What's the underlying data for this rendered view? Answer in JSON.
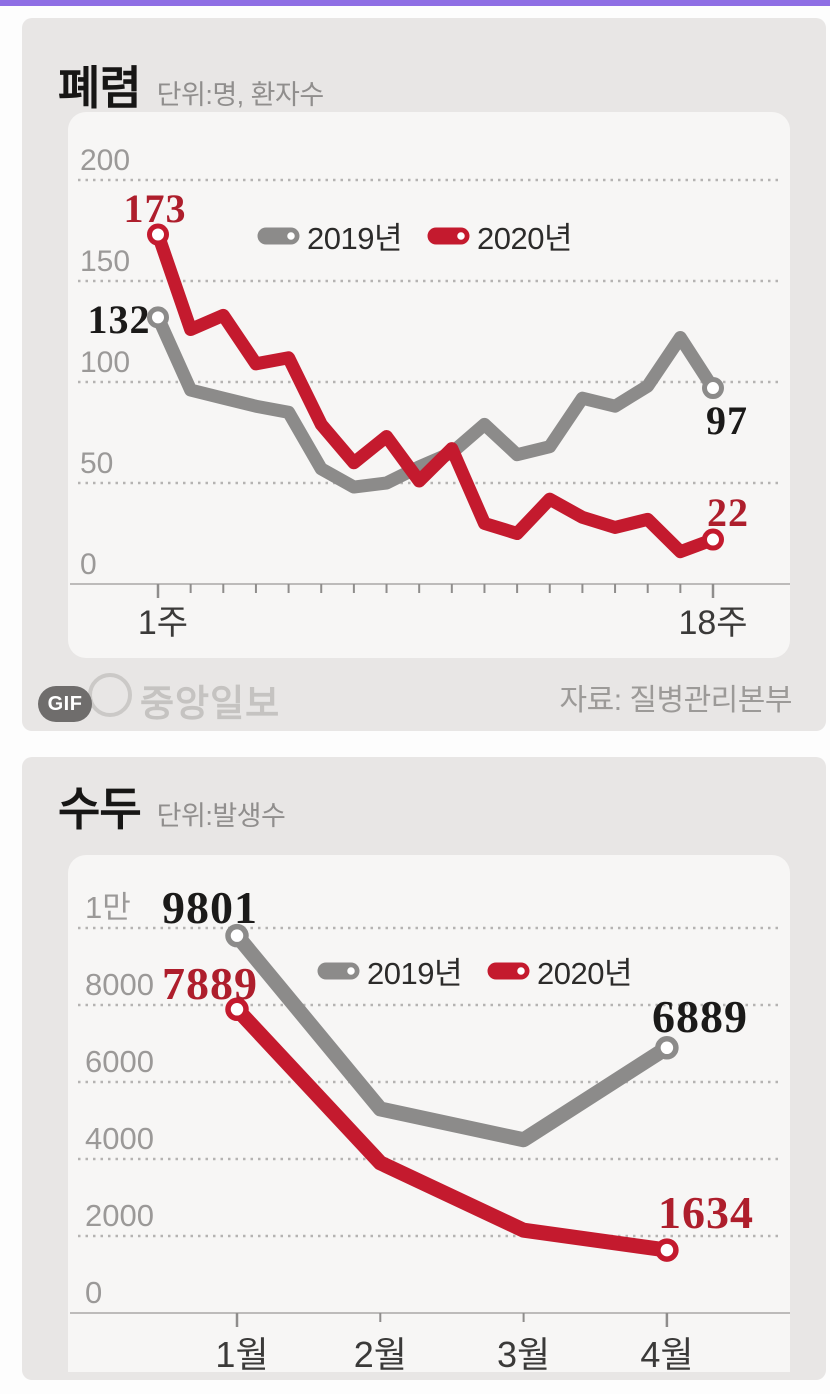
{
  "page": {
    "topbar_color": "#8e6ee4",
    "background": "#fdfdfd",
    "card_background": "#e8e6e5",
    "plot_background": "#f7f6f5"
  },
  "footer": {
    "gif_badge": "GIF",
    "brand": "중앙일보",
    "source": "자료: 질병관리본부"
  },
  "chart_data": [
    {
      "type": "line",
      "title": "폐렴",
      "subtitle": "단위:명, 환자수",
      "x_unit": "week",
      "x_labels": [
        {
          "i": 0,
          "text": "1주"
        },
        {
          "i": 17,
          "text": "18주"
        }
      ],
      "n_points": 18,
      "ylim": [
        0,
        200
      ],
      "yticks": [
        {
          "v": 0,
          "t": "0"
        },
        {
          "v": 50,
          "t": "50"
        },
        {
          "v": 100,
          "t": "100"
        },
        {
          "v": 150,
          "t": "150"
        },
        {
          "v": 200,
          "t": "200"
        }
      ],
      "grid": "dotted-horizontal",
      "legend_position": "top-center",
      "series": [
        {
          "name": "2019년",
          "color": "#8c8b8a",
          "values": [
            132,
            96,
            92,
            88,
            85,
            57,
            48,
            50,
            58,
            65,
            79,
            64,
            68,
            92,
            88,
            98,
            122,
            97
          ],
          "point_labels": [
            {
              "i": 0,
              "text": "132",
              "color": "#1b1a19"
            },
            {
              "i": 17,
              "text": "97",
              "color": "#1b1a19"
            }
          ]
        },
        {
          "name": "2020년",
          "color": "#c41a2e",
          "values": [
            173,
            126,
            133,
            109,
            112,
            79,
            60,
            73,
            51,
            67,
            30,
            25,
            42,
            33,
            28,
            32,
            16,
            22
          ],
          "point_labels": [
            {
              "i": 0,
              "text": "173",
              "color": "#ae1e2c"
            },
            {
              "i": 17,
              "text": "22",
              "color": "#ae1e2c"
            }
          ]
        }
      ]
    },
    {
      "type": "line",
      "title": "수두",
      "subtitle": "단위:발생수",
      "x_unit": "month",
      "x_labels": [
        {
          "i": 0,
          "text": "1월"
        },
        {
          "i": 1,
          "text": "2월"
        },
        {
          "i": 2,
          "text": "3월"
        },
        {
          "i": 3,
          "text": "4월"
        }
      ],
      "n_points": 4,
      "ylim": [
        0,
        10000
      ],
      "yticks": [
        {
          "v": 0,
          "t": "0"
        },
        {
          "v": 2000,
          "t": "2000"
        },
        {
          "v": 4000,
          "t": "4000"
        },
        {
          "v": 6000,
          "t": "6000"
        },
        {
          "v": 8000,
          "t": "8000"
        },
        {
          "v": 10000,
          "t": "1만"
        }
      ],
      "grid": "dotted-horizontal",
      "legend_position": "upper-middle",
      "series": [
        {
          "name": "2019년",
          "color": "#8c8b8a",
          "values": [
            9801,
            5300,
            4500,
            6889
          ],
          "point_labels": [
            {
              "i": 0,
              "text": "9801",
              "color": "#1b1a19"
            },
            {
              "i": 3,
              "text": "6889",
              "color": "#1b1a19"
            }
          ]
        },
        {
          "name": "2020년",
          "color": "#c41a2e",
          "values": [
            7889,
            3900,
            2150,
            1634
          ],
          "point_labels": [
            {
              "i": 0,
              "text": "7889",
              "color": "#ae1e2c"
            },
            {
              "i": 3,
              "text": "1634",
              "color": "#ae1e2c"
            }
          ]
        }
      ]
    }
  ]
}
